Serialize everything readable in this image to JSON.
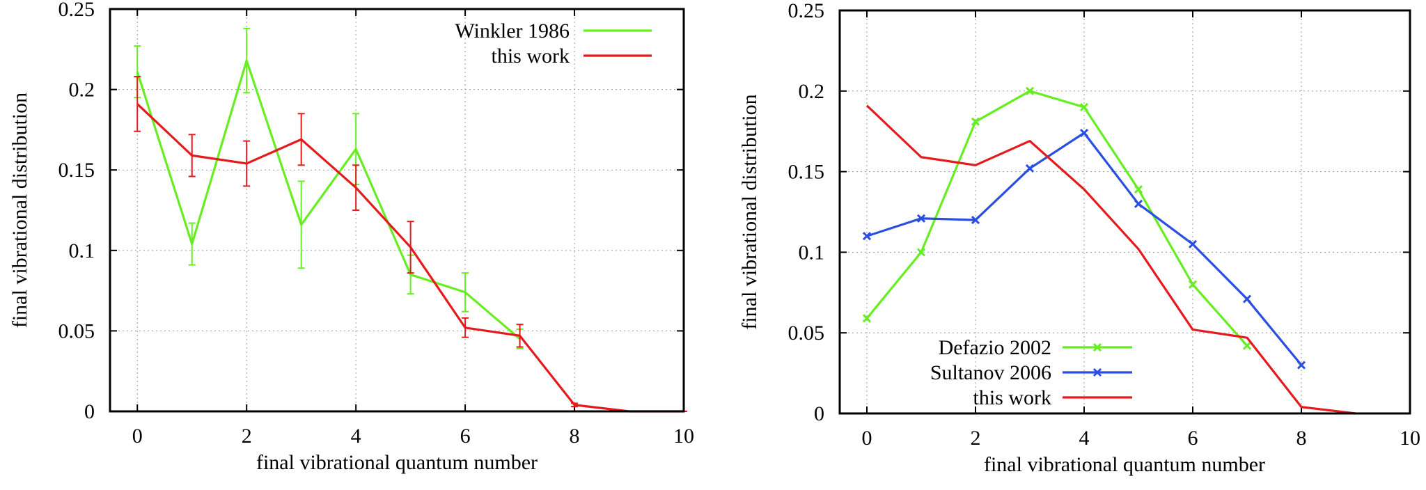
{
  "chart_data": [
    {
      "type": "line",
      "panel": "left",
      "xlabel": "final vibrational quantum number",
      "ylabel": "final vibrational distribution",
      "xlim": [
        -0.5,
        10
      ],
      "ylim": [
        0,
        0.25
      ],
      "xticks": [
        0,
        2,
        4,
        6,
        8,
        10
      ],
      "xtick_labels": [
        "0",
        "2",
        "4",
        "6",
        "8",
        "10"
      ],
      "yticks": [
        0,
        0.05,
        0.1,
        0.15,
        0.2,
        0.25
      ],
      "ytick_labels": [
        "0",
        "0.05",
        "0.1",
        "0.15",
        "0.2",
        "0.25"
      ],
      "grid": true,
      "legend_position": "top-right",
      "series": [
        {
          "name": "Winkler 1986",
          "color": "#66ee22",
          "x": [
            0,
            1,
            2,
            3,
            4,
            5,
            6,
            7
          ],
          "y": [
            0.211,
            0.104,
            0.218,
            0.116,
            0.163,
            0.085,
            0.074,
            0.045
          ],
          "err": [
            0.016,
            0.013,
            0.02,
            0.027,
            0.022,
            0.012,
            0.012,
            0.006
          ],
          "marker": "errorbar"
        },
        {
          "name": "this work",
          "color": "#e41a1c",
          "x": [
            0,
            1,
            2,
            3,
            4,
            5,
            6,
            7,
            8,
            9,
            10
          ],
          "y": [
            0.191,
            0.159,
            0.154,
            0.169,
            0.139,
            0.102,
            0.052,
            0.047,
            0.004,
            0.0,
            0.0
          ],
          "err": [
            0.017,
            0.013,
            0.014,
            0.016,
            0.014,
            0.016,
            0.006,
            0.007,
            0.001,
            0.0,
            0.0
          ],
          "marker": "errorbar"
        }
      ]
    },
    {
      "type": "line",
      "panel": "right",
      "xlabel": "final vibrational quantum number",
      "ylabel": "final vibrational distribution",
      "xlim": [
        -0.5,
        10
      ],
      "ylim": [
        0,
        0.25
      ],
      "xticks": [
        0,
        2,
        4,
        6,
        8,
        10
      ],
      "xtick_labels": [
        "0",
        "2",
        "4",
        "6",
        "8",
        "10"
      ],
      "yticks": [
        0,
        0.05,
        0.1,
        0.15,
        0.2,
        0.25
      ],
      "ytick_labels": [
        "0",
        "0.05",
        "0.1",
        "0.15",
        "0.2",
        "0.25"
      ],
      "grid": true,
      "legend_position": "bottom-left",
      "series": [
        {
          "name": "Defazio 2002",
          "color": "#66ee22",
          "x": [
            0,
            1,
            2,
            3,
            4,
            5,
            6,
            7
          ],
          "y": [
            0.059,
            0.1,
            0.181,
            0.2,
            0.19,
            0.139,
            0.08,
            0.042
          ],
          "marker": "x"
        },
        {
          "name": "Sultanov 2006",
          "color": "#2a4ee0",
          "x": [
            0,
            1,
            2,
            3,
            4,
            5,
            6,
            7,
            8
          ],
          "y": [
            0.11,
            0.121,
            0.12,
            0.152,
            0.174,
            0.13,
            0.105,
            0.071,
            0.03
          ],
          "marker": "x"
        },
        {
          "name": "this work",
          "color": "#e41a1c",
          "x": [
            0,
            1,
            2,
            3,
            4,
            5,
            6,
            7,
            8,
            9
          ],
          "y": [
            0.191,
            0.159,
            0.154,
            0.169,
            0.139,
            0.102,
            0.052,
            0.047,
            0.004,
            0.0
          ],
          "marker": "none"
        }
      ]
    }
  ]
}
